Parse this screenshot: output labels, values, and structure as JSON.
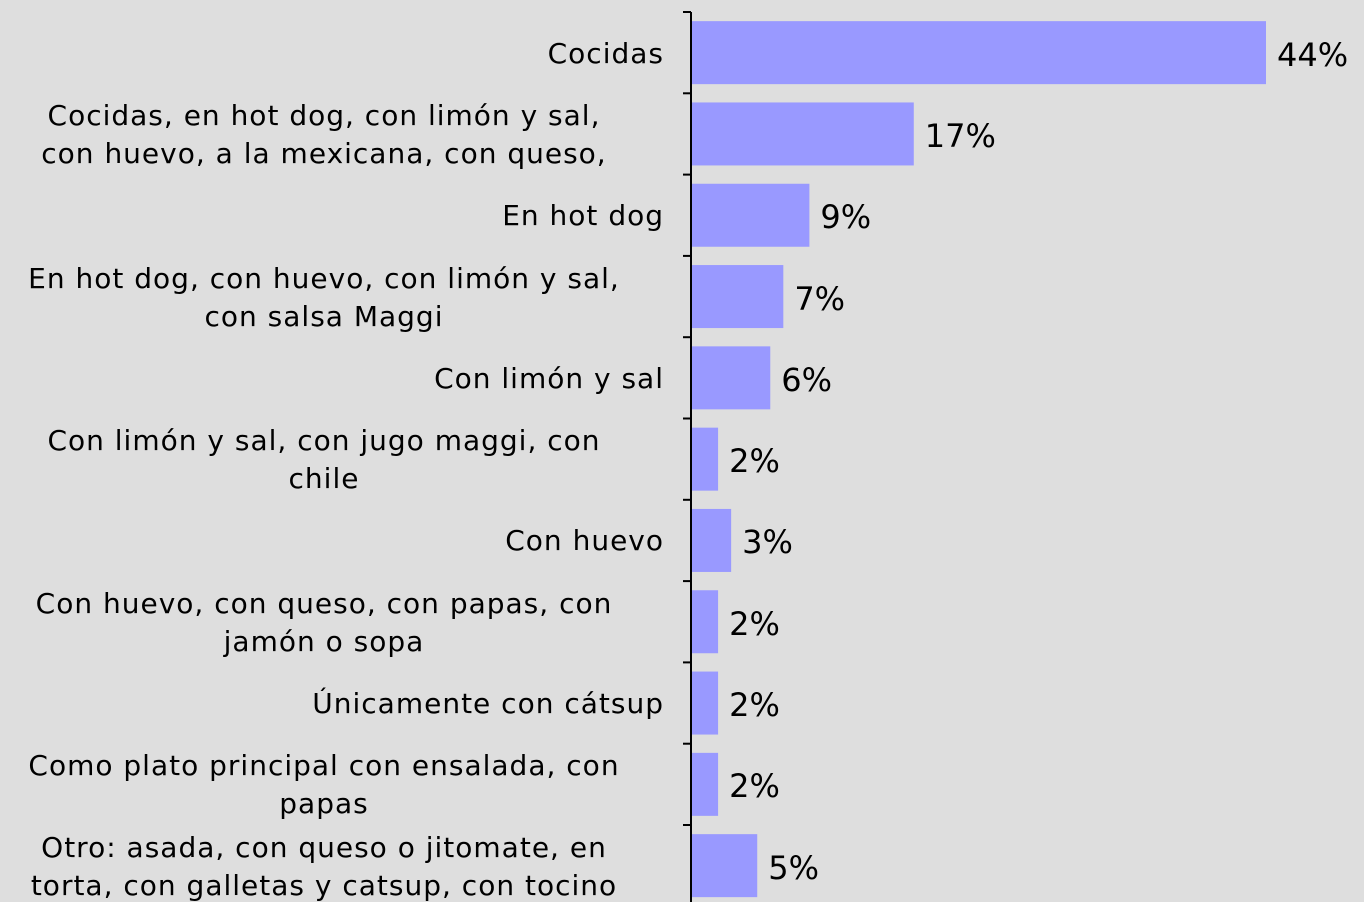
{
  "chart_data": {
    "type": "barh",
    "categories": [
      "Cocidas",
      "Cocidas, en hot dog, con limón y sal,\ncon huevo, a la mexicana, con queso,",
      "En hot dog",
      "En hot dog, con huevo, con limón y sal,\ncon salsa Maggi",
      "Con limón y sal",
      "Con limón y sal, con jugo maggi, con\nchile",
      "Con huevo",
      "Con huevo, con queso, con papas, con\njamón o sopa",
      "Únicamente con cátsup",
      "Como plato principal con ensalada, con\npapas",
      "Otro: asada, con queso o jitomate, en\ntorta, con galletas y catsup, con tocino"
    ],
    "values": [
      44,
      17,
      9,
      7,
      6,
      2,
      3,
      2,
      2,
      2,
      5
    ],
    "value_labels": [
      "44%",
      "17%",
      "9%",
      "7%",
      "6%",
      "2%",
      "3%",
      "2%",
      "2%",
      "2%",
      "5%"
    ],
    "color": "#9999ff"
  }
}
